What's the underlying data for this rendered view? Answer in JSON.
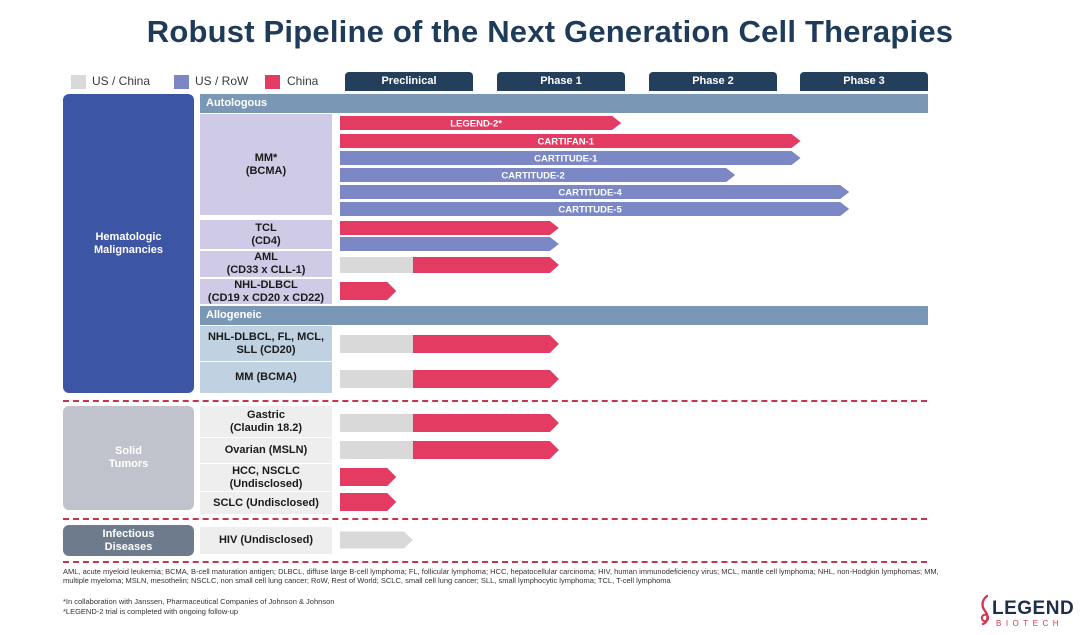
{
  "title": "Robust Pipeline of the Next Generation Cell Therapies",
  "colors": {
    "gray": "#d9d9d9",
    "blue": "#7c88c6",
    "red": "#e33b62",
    "dark_header": "#243f5c"
  },
  "legend": [
    {
      "label": "US / China",
      "color": "#d9d9d9"
    },
    {
      "label": "US / RoW",
      "color": "#7c88c6"
    },
    {
      "label": "China",
      "color": "#e33b62"
    }
  ],
  "phases": [
    "Preclinical",
    "Phase 1",
    "Phase 2",
    "Phase 3"
  ],
  "categories": {
    "heme": "Hematologic\nMalignancies",
    "solid": "Solid\nTumors",
    "infectious": "Infectious\nDiseases"
  },
  "sections": {
    "autologous": "Autologous",
    "allogeneic": "Allogeneic"
  },
  "targets": {
    "mm_bcma": "MM*\n(BCMA)",
    "tcl": "TCL\n(CD4)",
    "aml": "AML\n(CD33 x CLL-1)",
    "nhl": "NHL-DLBCL\n(CD19 x CD20 x CD22)",
    "allo_nhl": "NHL-DLBCL, FL,  MCL,\nSLL (CD20)",
    "allo_mm": "MM (BCMA)",
    "gastric": "Gastric\n(Claudin 18.2)",
    "ovarian": "Ovarian (MSLN)",
    "hcc": "HCC, NSCLC\n(Undisclosed)",
    "sclc": "SCLC (Undisclosed)",
    "hiv": "HIV (Undisclosed)"
  },
  "programs": [
    {
      "name": "LEGEND-2*",
      "color": "red",
      "progress": 1.85
    },
    {
      "name": "CARTIFAN-1",
      "color": "red",
      "progress": 3.03
    },
    {
      "name": "CARTITUDE-1",
      "color": "blue",
      "progress": 3.03
    },
    {
      "name": "CARTITUDE-2",
      "color": "blue",
      "progress": 2.6
    },
    {
      "name": "CARTITUDE-4",
      "color": "blue",
      "progress": 3.35
    },
    {
      "name": "CARTITUDE-5",
      "color": "blue",
      "progress": 3.35
    },
    {
      "name": "",
      "color": "red",
      "progress": 1.44
    },
    {
      "name": "",
      "color": "blue",
      "progress": 1.44
    },
    {
      "name": "",
      "color": "gray+red",
      "gray_part": 0.48,
      "progress": 1.44
    },
    {
      "name": "",
      "color": "red",
      "progress": 0.37
    },
    {
      "name": "",
      "color": "gray+red",
      "gray_part": 0.48,
      "progress": 1.44
    },
    {
      "name": "",
      "color": "gray+red",
      "gray_part": 0.48,
      "progress": 1.44
    },
    {
      "name": "",
      "color": "gray+red",
      "gray_part": 0.48,
      "progress": 1.44
    },
    {
      "name": "",
      "color": "gray+red",
      "gray_part": 0.48,
      "progress": 1.44
    },
    {
      "name": "",
      "color": "red",
      "progress": 0.37
    },
    {
      "name": "",
      "color": "red",
      "progress": 0.37
    },
    {
      "name": "",
      "color": "gray",
      "progress": 0.48
    }
  ],
  "abbreviations": "AML, acute myeloid leukemia; BCMA, B-cell maturation antigen; DLBCL, diffuse large B-cell lymphoma; FL, follicular lymphoma; HCC, hepatocellular carcinoma; HIV, human immunodeficiency virus; MCL, mantle cell lymphoma; NHL, non-Hodgkin lymphomas; MM, multiple myeloma; MSLN, mesothelin; NSCLC, non small cell lung cancer;  RoW, Rest of World; SCLC, small cell lung cancer; SLL, small lymphocytic lymphoma; TCL, T-cell lymphoma",
  "footnotes": [
    "*In collaboration with Janssen, Pharmaceutical Companies of Johnson & Johnson",
    "*LEGEND-2 trial is completed with ongoing follow-up"
  ],
  "logo": {
    "text": "LEGEND",
    "subtext": "BIOTECH"
  }
}
